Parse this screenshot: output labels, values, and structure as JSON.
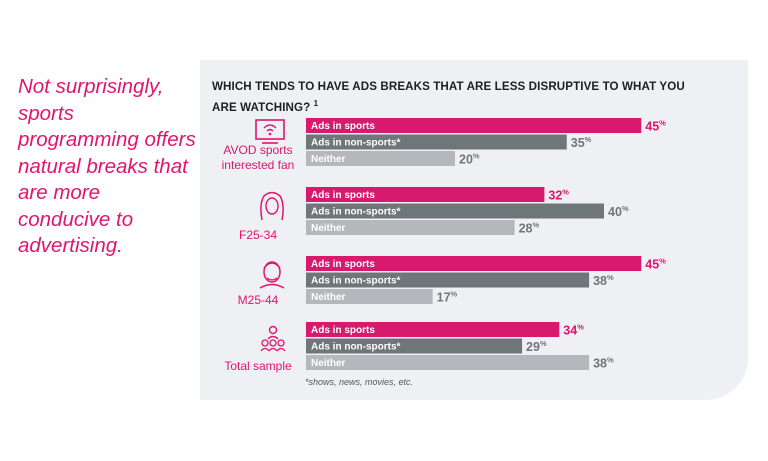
{
  "quote": "Not surprisingly, sports programming offers natural breaks that are more conducive to advertising.",
  "question": "WHICH TENDS TO HAVE ADS BREAKS THAT ARE LESS DISRUPTIVE TO WHAT YOU ARE WATCHING?",
  "question_note": "1",
  "footnote": "*shows, news, movies, etc.",
  "colors": {
    "sports": "#d81a6e",
    "non_sports": "#6e7679",
    "neither": "#b4b8bc",
    "accent": "#e0156f"
  },
  "chart_data": {
    "type": "bar",
    "orientation": "horizontal",
    "categories": [
      "AVOD sports interested fan",
      "F25-34",
      "M25-44",
      "Total sample"
    ],
    "series": [
      {
        "name": "Ads in sports",
        "values": [
          45,
          32,
          45,
          34
        ]
      },
      {
        "name": "Ads in non-sports*",
        "values": [
          35,
          40,
          38,
          29
        ]
      },
      {
        "name": "Neither",
        "values": [
          20,
          28,
          17,
          38
        ]
      }
    ],
    "value_suffix": "%",
    "title": "WHICH TENDS TO HAVE ADS BREAKS THAT ARE LESS DISRUPTIVE TO WHAT YOU ARE WATCHING?"
  },
  "groups": [
    {
      "label_lines": [
        "AVOD sports",
        "interested fan"
      ],
      "icon": "tv-wifi-icon"
    },
    {
      "label_lines": [
        "F25-34"
      ],
      "icon": "woman-face-icon"
    },
    {
      "label_lines": [
        "M25-44"
      ],
      "icon": "man-face-icon"
    },
    {
      "label_lines": [
        "Total sample"
      ],
      "icon": "group-people-icon"
    }
  ]
}
